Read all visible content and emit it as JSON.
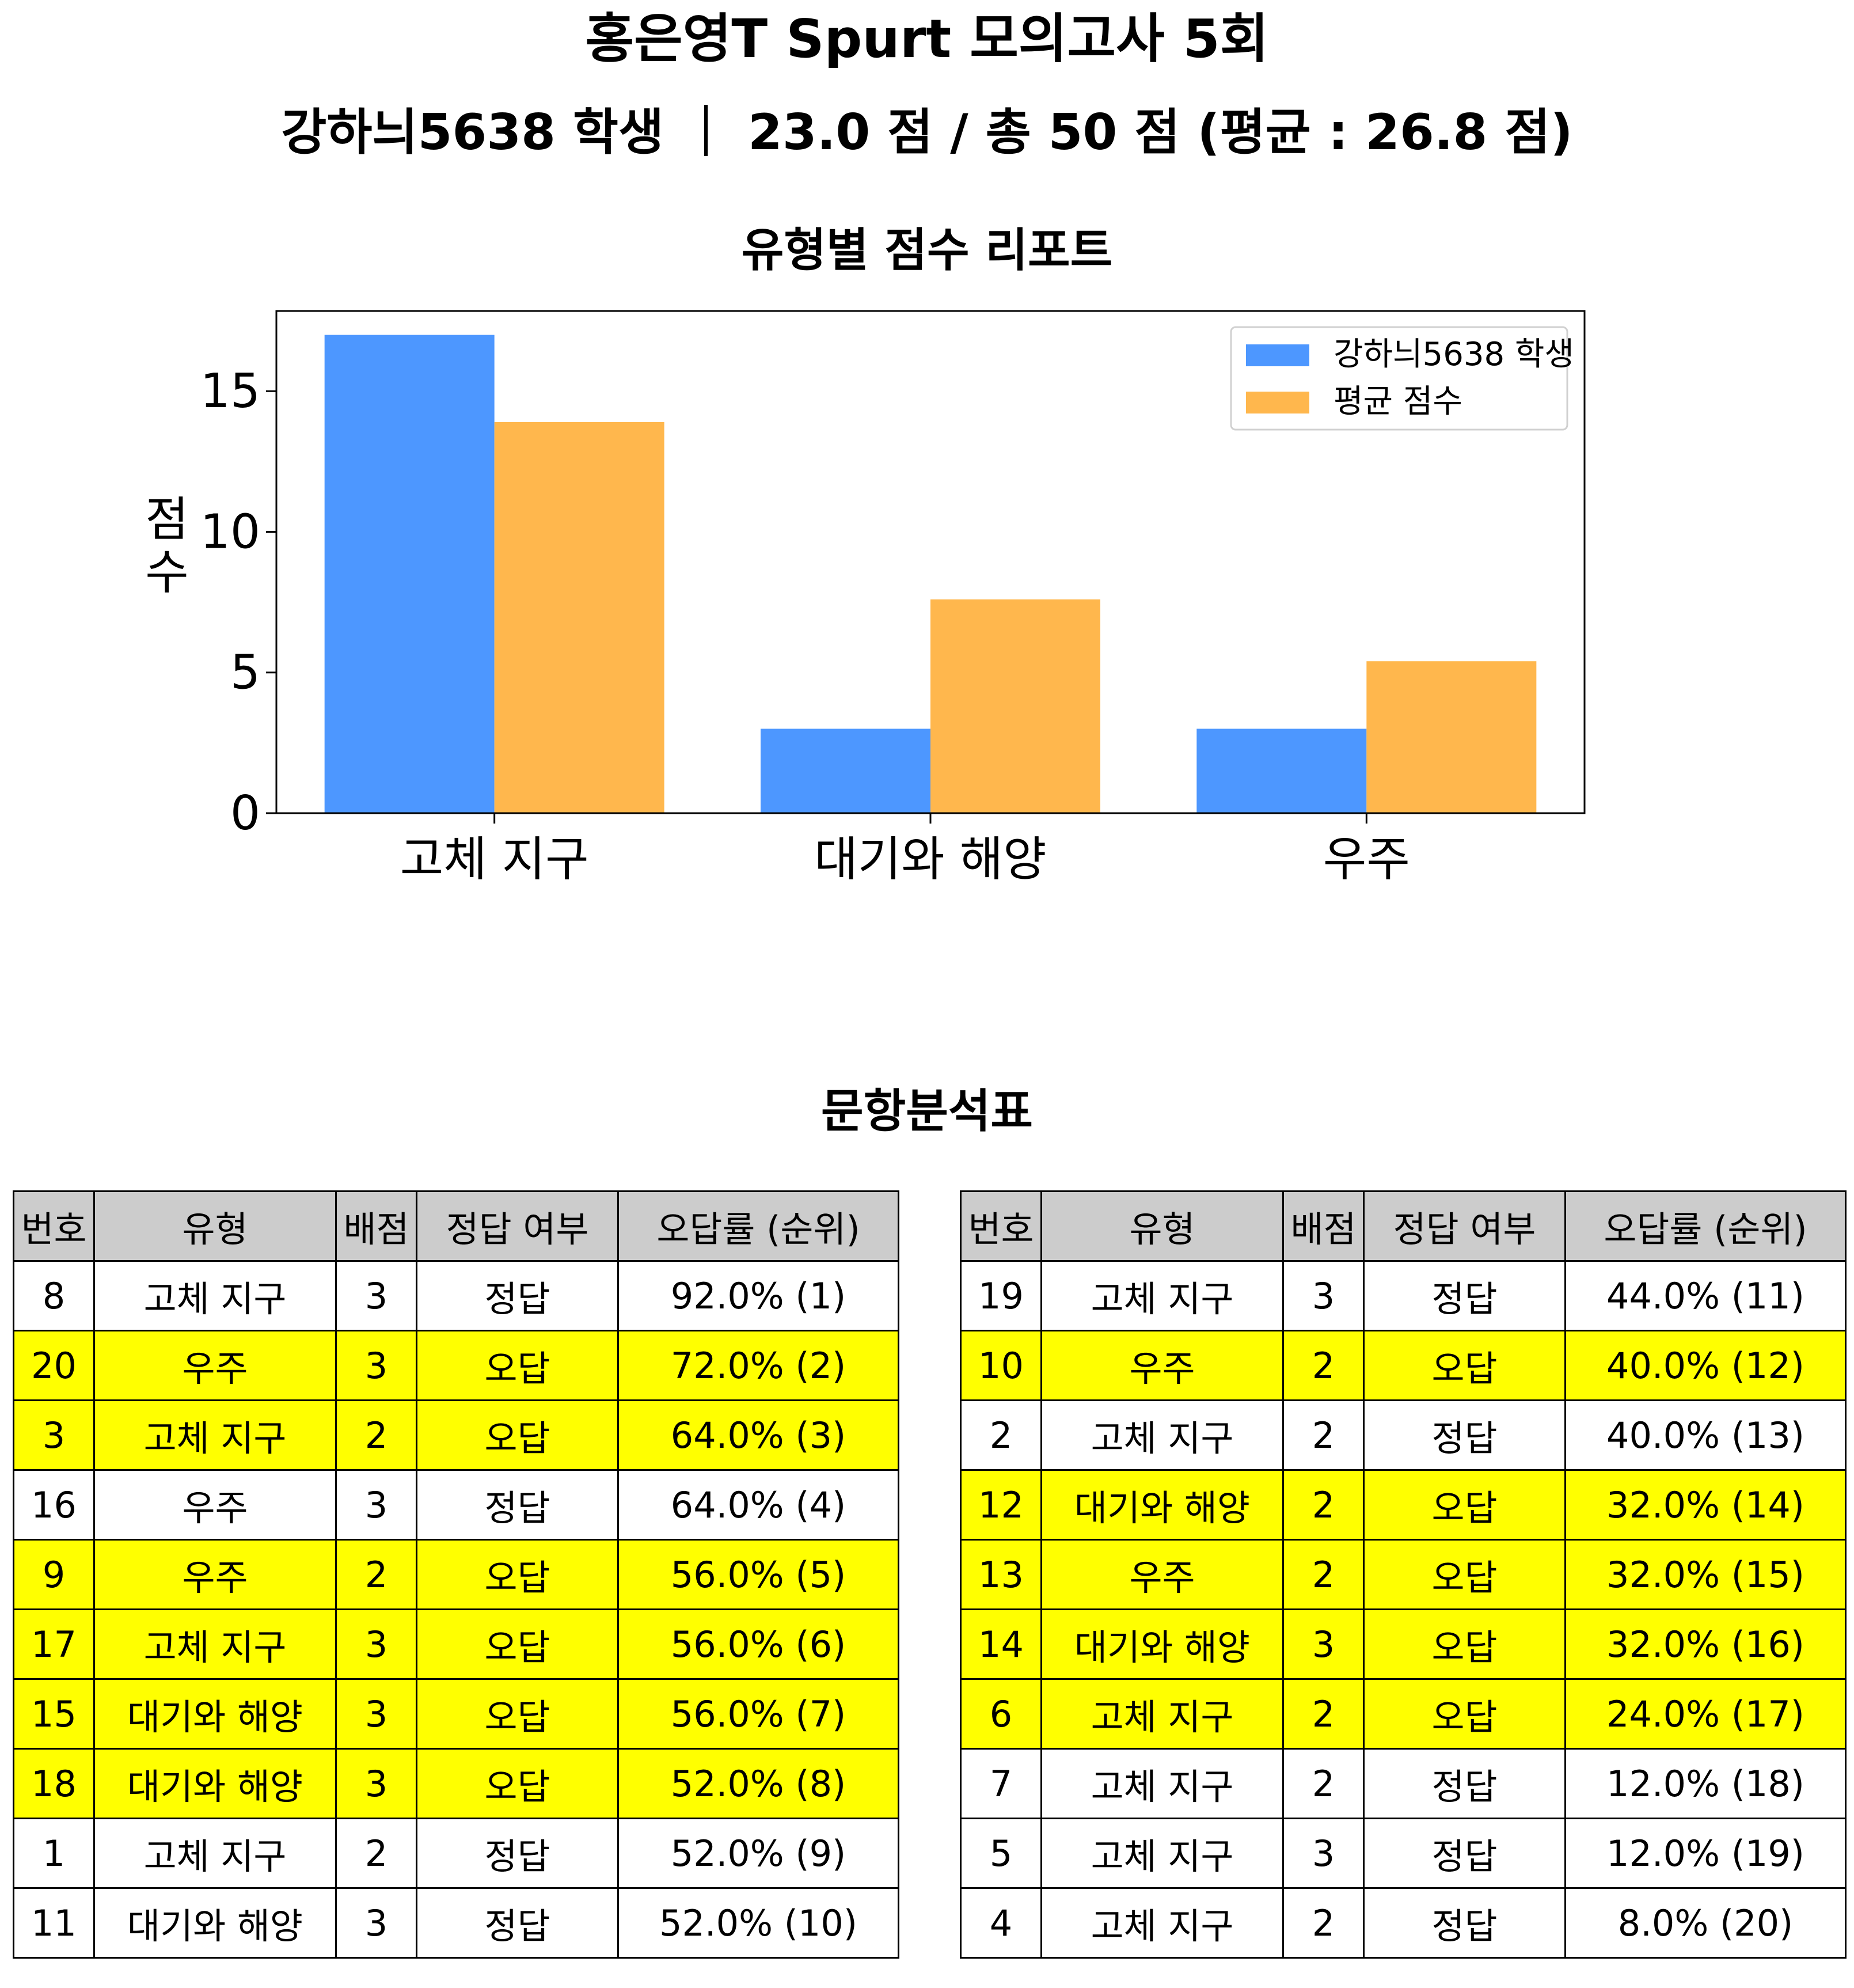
{
  "header": {
    "title": "홍은영T Spurt 모의고사 5회",
    "summary": "강하늬5638 학생 ｜ 23.0 점 / 총 50 점 (평균 : 26.8 점)"
  },
  "chart_data": {
    "type": "bar",
    "title": "유형별 점수 리포트",
    "xlabel": "",
    "ylabel": "점수",
    "categories": [
      "고체 지구",
      "대기와 해양",
      "우주"
    ],
    "series": [
      {
        "name": "강하늬5638 학생",
        "values": [
          17,
          3,
          3
        ],
        "color": "#4d97ff"
      },
      {
        "name": "평균 점수",
        "values": [
          13.9,
          7.6,
          5.4
        ],
        "color": "#ffb74d"
      }
    ],
    "ylim": [
      0,
      17.85
    ],
    "yticks": [
      0,
      5,
      10,
      15
    ],
    "grid": false,
    "legend": "top-right"
  },
  "analysis": {
    "title": "문항분석표",
    "headers": [
      "번호",
      "유형",
      "배점",
      "정답 여부",
      "오답률 (순위)"
    ],
    "left_rows": [
      [
        "8",
        "고체 지구",
        "3",
        "정답",
        "92.0% (1)"
      ],
      [
        "20",
        "우주",
        "3",
        "오답",
        "72.0% (2)"
      ],
      [
        "3",
        "고체 지구",
        "2",
        "오답",
        "64.0% (3)"
      ],
      [
        "16",
        "우주",
        "3",
        "정답",
        "64.0% (4)"
      ],
      [
        "9",
        "우주",
        "2",
        "오답",
        "56.0% (5)"
      ],
      [
        "17",
        "고체 지구",
        "3",
        "오답",
        "56.0% (6)"
      ],
      [
        "15",
        "대기와 해양",
        "3",
        "오답",
        "56.0% (7)"
      ],
      [
        "18",
        "대기와 해양",
        "3",
        "오답",
        "52.0% (8)"
      ],
      [
        "1",
        "고체 지구",
        "2",
        "정답",
        "52.0% (9)"
      ],
      [
        "11",
        "대기와 해양",
        "3",
        "정답",
        "52.0% (10)"
      ]
    ],
    "right_rows": [
      [
        "19",
        "고체 지구",
        "3",
        "정답",
        "44.0% (11)"
      ],
      [
        "10",
        "우주",
        "2",
        "오답",
        "40.0% (12)"
      ],
      [
        "2",
        "고체 지구",
        "2",
        "정답",
        "40.0% (13)"
      ],
      [
        "12",
        "대기와 해양",
        "2",
        "오답",
        "32.0% (14)"
      ],
      [
        "13",
        "우주",
        "2",
        "오답",
        "32.0% (15)"
      ],
      [
        "14",
        "대기와 해양",
        "3",
        "오답",
        "32.0% (16)"
      ],
      [
        "6",
        "고체 지구",
        "2",
        "오답",
        "24.0% (17)"
      ],
      [
        "7",
        "고체 지구",
        "2",
        "정답",
        "12.0% (18)"
      ],
      [
        "5",
        "고체 지구",
        "3",
        "정답",
        "12.0% (19)"
      ],
      [
        "4",
        "고체 지구",
        "2",
        "정답",
        "8.0% (20)"
      ]
    ],
    "wrong_label": "오답",
    "highlight_color": "#ffff00"
  }
}
